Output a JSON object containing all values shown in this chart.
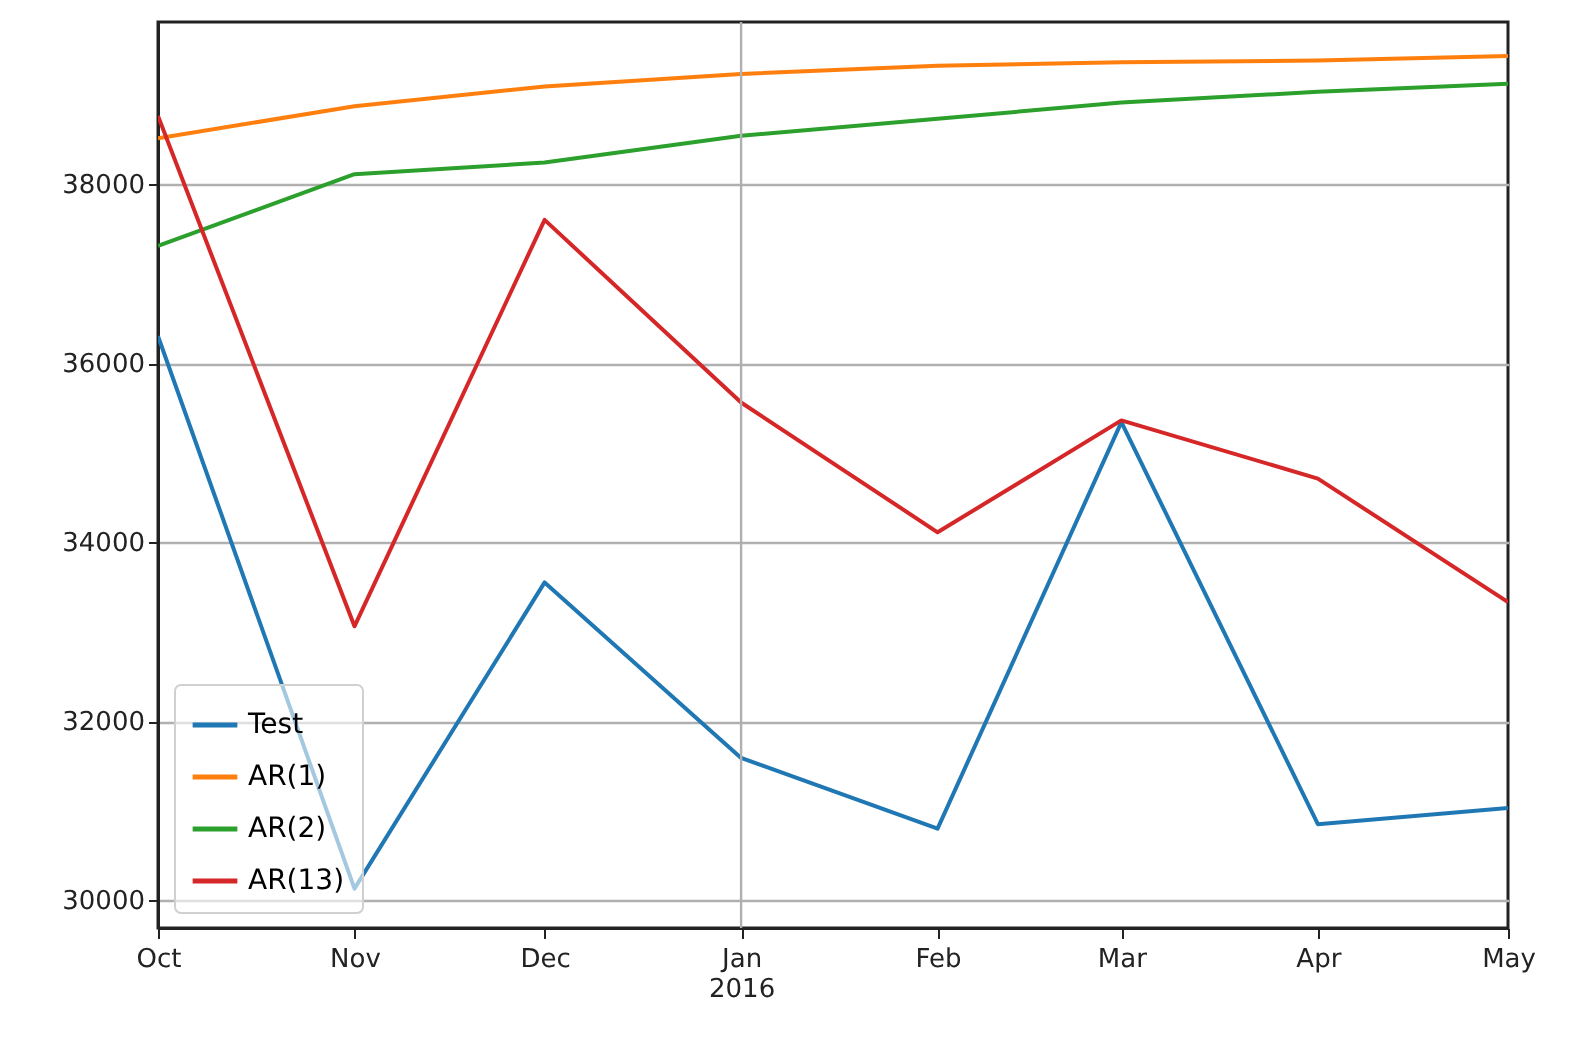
{
  "chart_data": {
    "type": "line",
    "x": [
      "2015-10",
      "2015-11",
      "2015-12",
      "2016-01",
      "2016-02",
      "2016-03",
      "2016-04",
      "2016-05"
    ],
    "xlim": [
      "2015-10",
      "2016-05"
    ],
    "xticks": [
      {
        "value": "2015-10",
        "label": "Oct"
      },
      {
        "value": "2015-11",
        "label": "Nov"
      },
      {
        "value": "2015-12",
        "label": "Dec"
      },
      {
        "value": "2016-01",
        "label": "Jan\n2016"
      },
      {
        "value": "2016-02",
        "label": "Feb"
      },
      {
        "value": "2016-03",
        "label": "Mar"
      },
      {
        "value": "2016-04",
        "label": "Apr"
      },
      {
        "value": "2016-05",
        "label": "May"
      }
    ],
    "ylim": [
      29690,
      39810
    ],
    "yticks": [
      30000,
      32000,
      34000,
      36000,
      38000
    ],
    "grid": "y",
    "ref_lines": [
      {
        "axis": "x",
        "value": "2016-01",
        "color": "#b0b0b0"
      }
    ],
    "legend": "bottom left",
    "series": [
      {
        "name": "Test",
        "color": "#1f77b4",
        "values": [
          36300,
          30130,
          33550,
          31590,
          30800,
          35340,
          30850,
          31030
        ]
      },
      {
        "name": "AR(1)",
        "color": "#ff7f0e",
        "values": [
          38510,
          38870,
          39090,
          39230,
          39320,
          39360,
          39380,
          39430
        ]
      },
      {
        "name": "AR(2)",
        "color": "#2ca02c",
        "values": [
          37310,
          38110,
          38240,
          38540,
          38730,
          38910,
          39030,
          39120
        ]
      },
      {
        "name": "AR(13)",
        "color": "#d62728",
        "values": [
          38760,
          33060,
          37600,
          35560,
          34110,
          35360,
          34710,
          33330
        ]
      }
    ]
  }
}
